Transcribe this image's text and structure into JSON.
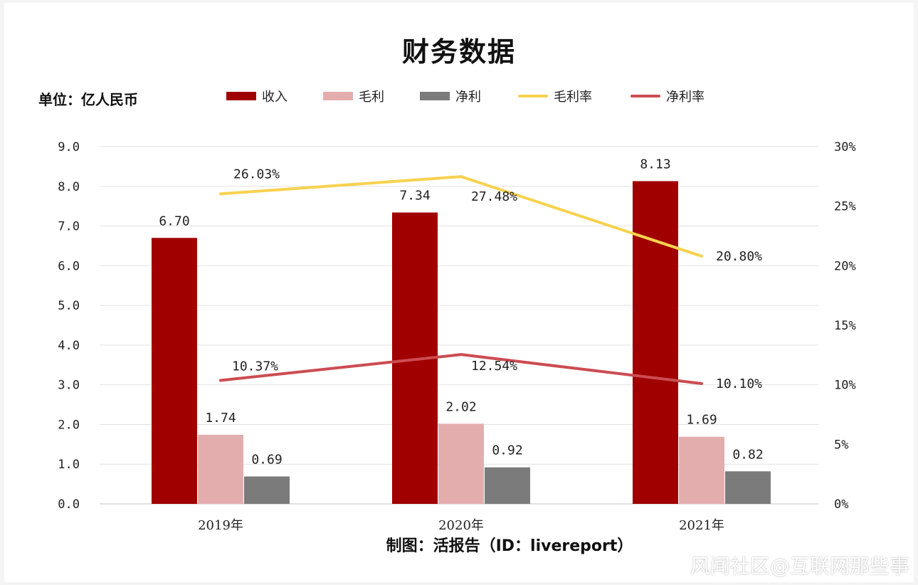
{
  "header": {
    "title": "财务数据",
    "unit": "单位：亿人民币"
  },
  "footer": {
    "credit": "制图：活报告（ID：livereport）",
    "watermark": "风闻社区@互联网那些事"
  },
  "colors": {
    "revenue": "#a00000",
    "gross_profit": "#e3adae",
    "net_profit": "#7b7b7b",
    "gross_margin": "#f7d24f",
    "net_margin": "#cc4c52",
    "grid": "#e2e2e2"
  },
  "chart_data": {
    "type": "bar",
    "title": "财务数据",
    "categories": [
      "2019年",
      "2020年",
      "2021年"
    ],
    "y_left": {
      "unit_label": "单位：亿人民币",
      "ylim": [
        0,
        9
      ],
      "ticks": [
        "0.0",
        "1.0",
        "2.0",
        "3.0",
        "4.0",
        "5.0",
        "6.0",
        "7.0",
        "8.0",
        "9.0"
      ]
    },
    "y_right": {
      "ylim": [
        0,
        30
      ],
      "ticks": [
        "0%",
        "5%",
        "10%",
        "15%",
        "20%",
        "25%",
        "30%"
      ]
    },
    "series": [
      {
        "name": "收入",
        "type": "bar",
        "axis": "left",
        "values": [
          6.7,
          7.34,
          8.13
        ],
        "labels": [
          "6.70",
          "7.34",
          "8.13"
        ]
      },
      {
        "name": "毛利",
        "type": "bar",
        "axis": "left",
        "values": [
          1.74,
          2.02,
          1.69
        ],
        "labels": [
          "1.74",
          "2.02",
          "1.69"
        ]
      },
      {
        "name": "净利",
        "type": "bar",
        "axis": "left",
        "values": [
          0.69,
          0.92,
          0.82
        ],
        "labels": [
          "0.69",
          "0.92",
          "0.82"
        ]
      },
      {
        "name": "毛利率",
        "type": "line",
        "axis": "right",
        "values": [
          26.03,
          27.48,
          20.8
        ],
        "labels": [
          "26.03%",
          "27.48%",
          "20.80%"
        ]
      },
      {
        "name": "净利率",
        "type": "line",
        "axis": "right",
        "values": [
          10.37,
          12.54,
          10.1
        ],
        "labels": [
          "10.37%",
          "12.54%",
          "10.10%"
        ]
      }
    ],
    "grid": true,
    "legend": "top"
  }
}
